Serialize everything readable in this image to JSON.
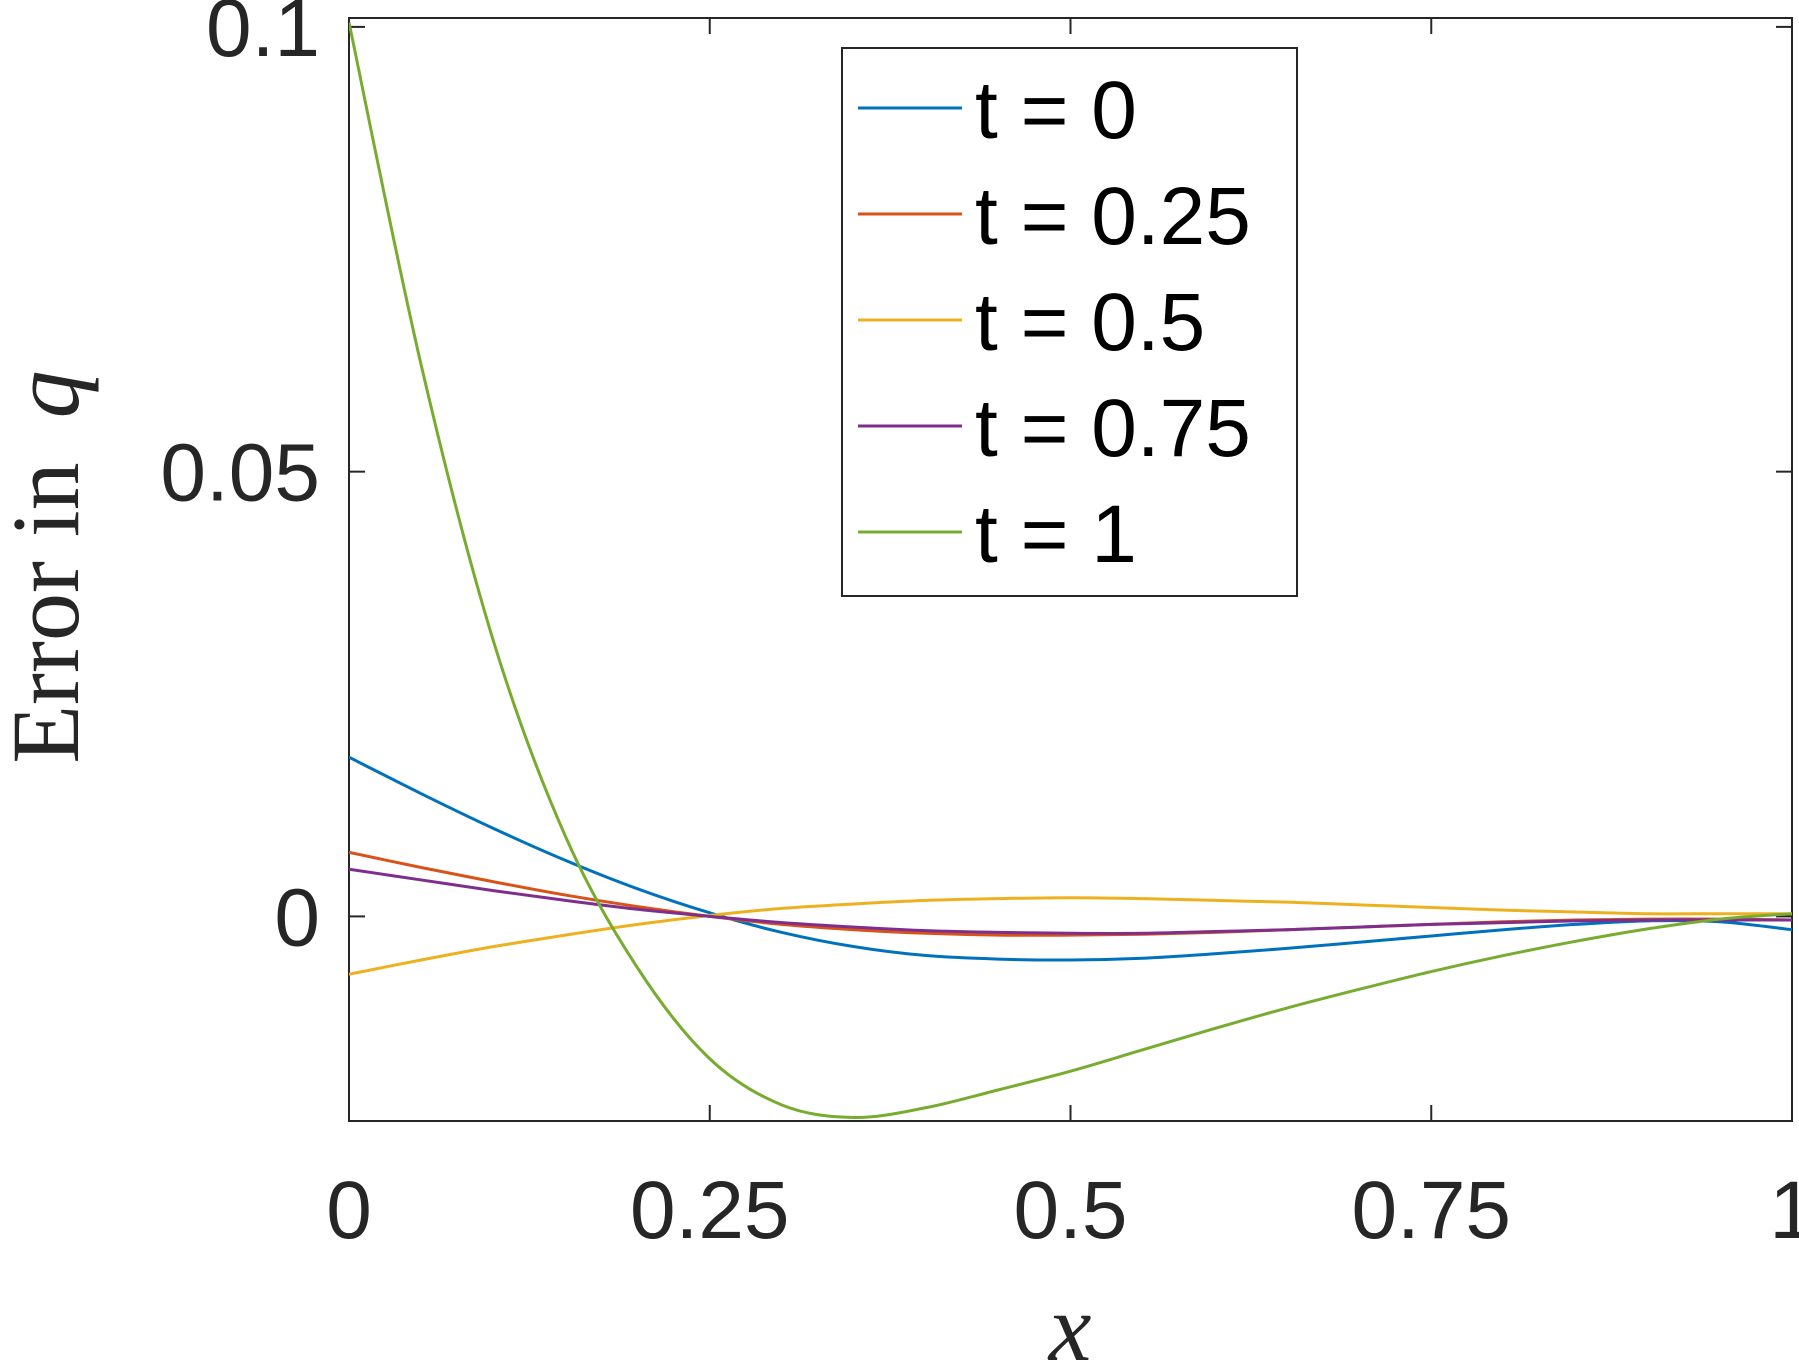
{
  "chart_data": {
    "type": "line",
    "title": "",
    "xlabel": "x",
    "ylabel_prefix": "Error in",
    "ylabel_var": "q",
    "xlim": [
      0,
      1
    ],
    "ylim": [
      -0.023,
      0.101
    ],
    "xticks": [
      0,
      0.25,
      0.5,
      0.75,
      1
    ],
    "xtick_labels": [
      "0",
      "0.25",
      "0.5",
      "0.75",
      "1"
    ],
    "yticks": [
      0,
      0.05,
      0.1
    ],
    "ytick_labels": [
      "0",
      "0.05",
      "0.1"
    ],
    "grid": false,
    "legend_position": "top-right",
    "x": [
      0,
      0.05,
      0.1,
      0.15,
      0.2,
      0.25,
      0.3,
      0.35,
      0.4,
      0.45,
      0.5,
      0.55,
      0.6,
      0.65,
      0.7,
      0.75,
      0.8,
      0.85,
      0.9,
      0.95,
      1
    ],
    "series": [
      {
        "name": "t = 0",
        "color": "#0072BD",
        "values": [
          0.0179,
          0.0138,
          0.0099,
          0.0063,
          0.0031,
          0.0004,
          -0.0018,
          -0.0034,
          -0.0044,
          -0.0048,
          -0.0049,
          -0.0047,
          -0.0042,
          -0.0036,
          -0.0029,
          -0.0022,
          -0.0015,
          -0.0009,
          -0.0005,
          -0.0006,
          -0.0015
        ]
      },
      {
        "name": "t = 0.25",
        "color": "#D95319",
        "values": [
          0.0072,
          0.0055,
          0.0039,
          0.0024,
          0.0011,
          0.0,
          -0.0009,
          -0.0015,
          -0.0019,
          -0.0021,
          -0.0021,
          -0.002,
          -0.0018,
          -0.0015,
          -0.0012,
          -0.0009,
          -0.0006,
          -0.0004,
          -0.0003,
          -0.0003,
          -0.0004
        ]
      },
      {
        "name": "t = 0.5",
        "color": "#EDB120",
        "values": [
          -0.0065,
          -0.0049,
          -0.0034,
          -0.0021,
          -0.0009,
          0.0001,
          0.0009,
          0.0014,
          0.0018,
          0.002,
          0.0021,
          0.002,
          0.0018,
          0.0016,
          0.0013,
          0.001,
          0.0007,
          0.0005,
          0.0003,
          0.0003,
          0.0003
        ]
      },
      {
        "name": "t = 0.75",
        "color": "#7E2F8E",
        "values": [
          0.0053,
          0.0041,
          0.0029,
          0.0018,
          0.0008,
          0.0,
          -0.0007,
          -0.0012,
          -0.0016,
          -0.0018,
          -0.0019,
          -0.0019,
          -0.0017,
          -0.0015,
          -0.0012,
          -0.0009,
          -0.0007,
          -0.0005,
          -0.0004,
          -0.0004,
          -0.0004
        ]
      },
      {
        "name": "t = 1",
        "color": "#77AC30",
        "values": [
          0.1005,
          0.062,
          0.031,
          0.009,
          -0.0058,
          -0.016,
          -0.0212,
          -0.0226,
          -0.0215,
          -0.0195,
          -0.0174,
          -0.015,
          -0.0126,
          -0.0103,
          -0.0082,
          -0.0062,
          -0.0044,
          -0.0028,
          -0.0014,
          -0.0003,
          0.0003
        ]
      }
    ]
  }
}
